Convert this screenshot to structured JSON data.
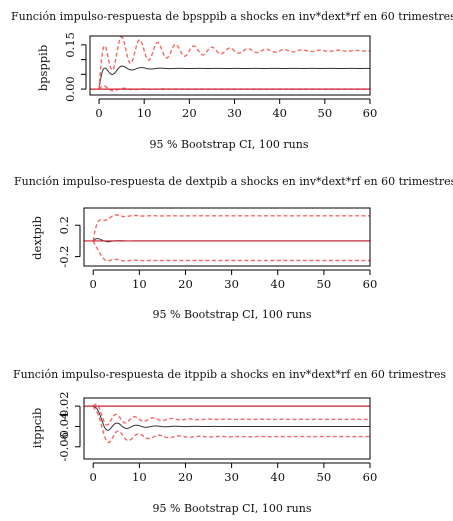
{
  "panels": [
    {
      "title": "Función impulso-respuesta de bpsppib a shocks en inv*dext*rf en 60 trimestres",
      "caption": "95 % Bootstrap CI, 100 runs",
      "ylabel": "bpsppib"
    },
    {
      "title": "Función impulso-respuesta de dextpib a shocks en inv*dext*rf en 60 trimestres",
      "caption": "95 % Bootstrap CI, 100 runs",
      "ylabel": "dextpib"
    },
    {
      "title": "Función impulso-respuesta de itppib a shocks en inv*dext*rf en 60 trimestres",
      "caption": "95 % Bootstrap CI, 100 runs",
      "ylabel": "itppcib"
    }
  ],
  "colors": {
    "response": "#333333",
    "ci_band": "#f26a6a",
    "zero_line": "#cc2233",
    "axis": "#000000"
  },
  "chart_data": [
    {
      "type": "line",
      "title": "Función impulso-respuesta de bpsppib a shocks en inv*dext*rf en 60 trimestres",
      "xlabel": "",
      "ylabel": "bpsppib",
      "xlim": [
        -2,
        60
      ],
      "ylim": [
        -0.02,
        0.18
      ],
      "xticks": [
        0,
        10,
        20,
        30,
        40,
        50,
        60
      ],
      "yticks": [
        0.0,
        0.05,
        0.1,
        0.15
      ],
      "ytick_labels": [
        "0.00",
        "",
        "",
        "0.15"
      ],
      "zero_line": 0,
      "series": [
        {
          "name": "",
          "role": "response",
          "y_start": 0.0,
          "y_end": 0.07,
          "amp": 0.035,
          "period": 2.1,
          "decay": 0.26
        },
        {
          "name": "",
          "role": "upper",
          "y_start": 0.0,
          "y_end": 0.13,
          "amp": 0.07,
          "period": 2.0,
          "decay": 0.07
        },
        {
          "name": "",
          "role": "lower",
          "y_start": 0.0,
          "y_end": 0.0,
          "amp": 0.015,
          "period": 2.2,
          "decay": 0.3
        }
      ]
    },
    {
      "type": "line",
      "title": "Función impulso-respuesta de dextpib a shocks en inv*dext*rf en 60 trimestres",
      "xlabel": "",
      "ylabel": "dextpib",
      "xlim": [
        -2,
        60
      ],
      "ylim": [
        -0.32,
        0.42
      ],
      "xticks": [
        0,
        10,
        20,
        30,
        40,
        50,
        60
      ],
      "yticks": [
        -0.2,
        0.2
      ],
      "ytick_labels": [
        "-0.2",
        "0.2"
      ],
      "zero_line": 0,
      "series": [
        {
          "name": "",
          "role": "response",
          "y_start": 0.0,
          "y_end": 0.0,
          "amp": 0.05,
          "period": 2.3,
          "decay": 0.5
        },
        {
          "name": "",
          "role": "upper",
          "y_start": 0.0,
          "y_end": 0.32,
          "amp": 0.07,
          "period": 2.0,
          "decay": 0.3
        },
        {
          "name": "",
          "role": "lower",
          "y_start": 0.0,
          "y_end": -0.25,
          "amp": 0.05,
          "period": 2.0,
          "decay": 0.3
        }
      ]
    },
    {
      "type": "line",
      "title": "Función impulso-respuesta de itppib a shocks en inv*dext*rf en 60 trimestres",
      "xlabel": "",
      "ylabel": "itppcib",
      "xlim": [
        -2,
        60
      ],
      "ylim": [
        -0.072,
        -0.012
      ],
      "xticks": [
        0,
        10,
        20,
        30,
        40,
        50,
        60
      ],
      "yticks": [
        -0.06,
        -0.04,
        -0.02
      ],
      "ytick_labels": [
        "-0.06",
        "-0.04",
        "-0.02"
      ],
      "zero_line": -0.02,
      "series": [
        {
          "name": "",
          "role": "response",
          "y_start": -0.02,
          "y_end": -0.04,
          "amp": 0.01,
          "period": 2.1,
          "decay": 0.22
        },
        {
          "name": "",
          "role": "upper",
          "y_start": -0.02,
          "y_end": -0.033,
          "amp": 0.01,
          "period": 2.0,
          "decay": 0.15
        },
        {
          "name": "",
          "role": "lower",
          "y_start": -0.02,
          "y_end": -0.05,
          "amp": 0.012,
          "period": 2.2,
          "decay": 0.15
        }
      ]
    }
  ]
}
